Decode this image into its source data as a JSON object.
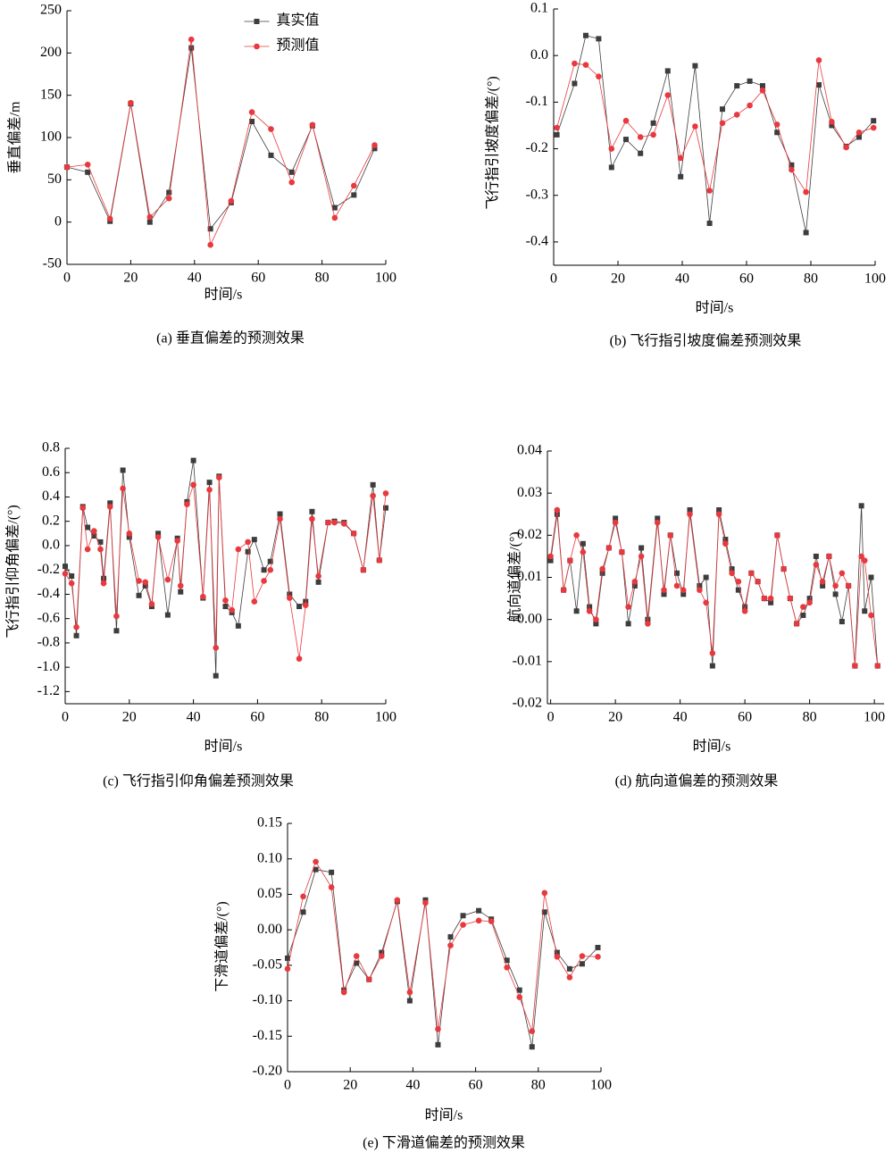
{
  "chart_data": [
    {
      "type": "line",
      "title": "(a) 垂直偏差的预测效果",
      "xlabel": "时间/s",
      "ylabel": "垂直偏差/m",
      "x": [
        0,
        6.5,
        13.5,
        20,
        26,
        32,
        39,
        45,
        51.5,
        58,
        64,
        70.5,
        77,
        84,
        90,
        96.5
      ],
      "series": [
        {
          "name": "真实值",
          "color": "#3d3d3d",
          "marker": "square",
          "values": [
            65,
            59,
            1,
            140,
            0,
            35,
            206,
            -8,
            23,
            119,
            79,
            59,
            114,
            17,
            32,
            87
          ]
        },
        {
          "name": "预测值",
          "color": "#e8393f",
          "marker": "circle",
          "values": [
            65,
            68,
            4,
            141,
            6,
            28,
            216,
            -27,
            25,
            130,
            110,
            47,
            115,
            5,
            43,
            91
          ]
        }
      ],
      "xlim": [
        0,
        100
      ],
      "xticks": [
        0,
        20,
        40,
        60,
        80,
        100
      ],
      "ylim": [
        -50,
        250
      ],
      "yticks": [
        -50,
        0,
        50,
        100,
        150,
        200,
        250
      ],
      "legend": "upper center"
    },
    {
      "type": "line",
      "title": "(b) 飞行指引坡度偏差预测效果",
      "xlabel": "时间/s",
      "ylabel": "飞行指引坡度偏差/(°)",
      "x": [
        1,
        6.5,
        10,
        14,
        18,
        22.5,
        27,
        31,
        35.5,
        39.5,
        44,
        48.5,
        52.5,
        57,
        61,
        65,
        69.5,
        74,
        78.5,
        82.5,
        86.5,
        91,
        95,
        99.5
      ],
      "series": [
        {
          "name": "真实值",
          "color": "#3d3d3d",
          "marker": "square",
          "values": [
            -0.17,
            -0.06,
            0.043,
            0.036,
            -0.24,
            -0.18,
            -0.21,
            -0.145,
            -0.033,
            -0.26,
            -0.022,
            -0.36,
            -0.115,
            -0.065,
            -0.055,
            -0.065,
            -0.165,
            -0.235,
            -0.38,
            -0.063,
            -0.15,
            -0.195,
            -0.175,
            -0.14
          ]
        },
        {
          "name": "预测值",
          "color": "#e8393f",
          "marker": "circle",
          "values": [
            -0.155,
            -0.017,
            -0.02,
            -0.045,
            -0.2,
            -0.14,
            -0.175,
            -0.17,
            -0.085,
            -0.22,
            -0.152,
            -0.29,
            -0.145,
            -0.127,
            -0.107,
            -0.075,
            -0.148,
            -0.245,
            -0.293,
            -0.01,
            -0.142,
            -0.197,
            -0.165,
            -0.155
          ]
        }
      ],
      "xlim": [
        0,
        100
      ],
      "xticks": [
        0,
        20,
        40,
        60,
        80,
        100
      ],
      "ylim": [
        -0.45,
        0.1
      ],
      "yticks": [
        -0.4,
        -0.3,
        -0.2,
        -0.1,
        {
          "value": 0,
          "label": "0.0"
        },
        0.1
      ]
    },
    {
      "type": "line",
      "title": "(c) 飞行指引仰角偏差预测效果",
      "xlabel": "时间/s",
      "ylabel": "飞行指引仰角偏差/(°)",
      "x": [
        0,
        2,
        3.5,
        5.5,
        7,
        9,
        11,
        12,
        14,
        16,
        18,
        20,
        23,
        25,
        27,
        29,
        32,
        35,
        36,
        38,
        40,
        43,
        45,
        47,
        48,
        50,
        52,
        54,
        57,
        59,
        62,
        64,
        67,
        70,
        73,
        75,
        77,
        79,
        82,
        84,
        87,
        90,
        93,
        96,
        98,
        100
      ],
      "series": [
        {
          "name": "真实值",
          "color": "#3d3d3d",
          "marker": "square",
          "values": [
            -0.17,
            -0.25,
            -0.74,
            0.32,
            0.15,
            0.08,
            0.03,
            -0.27,
            0.35,
            -0.7,
            0.62,
            0.07,
            -0.41,
            -0.33,
            -0.5,
            0.1,
            -0.57,
            0.06,
            -0.38,
            0.36,
            0.7,
            -0.43,
            0.52,
            -1.07,
            0.57,
            -0.5,
            -0.55,
            -0.66,
            -0.05,
            0.05,
            -0.2,
            -0.13,
            0.26,
            -0.4,
            -0.5,
            -0.46,
            0.28,
            -0.3,
            0.19,
            0.2,
            0.19,
            0.1,
            -0.2,
            0.5,
            -0.12,
            0.31
          ]
        },
        {
          "name": "预测值",
          "color": "#e8393f",
          "marker": "circle",
          "values": [
            -0.23,
            -0.31,
            -0.67,
            0.31,
            -0.03,
            0.12,
            -0.03,
            -0.31,
            0.32,
            -0.58,
            0.47,
            0.1,
            -0.29,
            -0.3,
            -0.48,
            0.07,
            -0.28,
            0.04,
            -0.33,
            0.34,
            0.5,
            -0.42,
            0.46,
            -0.84,
            0.56,
            -0.45,
            -0.53,
            -0.03,
            0.03,
            -0.46,
            -0.29,
            -0.2,
            0.22,
            -0.43,
            -0.93,
            -0.49,
            0.22,
            -0.25,
            0.19,
            0.19,
            0.18,
            0.1,
            -0.2,
            0.41,
            -0.12,
            0.43
          ]
        }
      ],
      "xlim": [
        0,
        100
      ],
      "xticks": [
        0,
        20,
        40,
        60,
        80,
        100
      ],
      "ylim": [
        -1.3,
        0.8
      ],
      "yticks": [
        -1.2,
        {
          "value": -1,
          "label": "-1.0"
        },
        -0.8,
        -0.6,
        -0.4,
        -0.2,
        {
          "value": 0,
          "label": "0.0"
        },
        0.2,
        0.4,
        0.6,
        0.8
      ]
    },
    {
      "type": "line",
      "title": "(d) 航向道偏差的预测效果",
      "xlabel": "时间/s",
      "ylabel": "航向道偏差/(°)",
      "x": [
        0,
        2,
        4,
        6,
        8,
        10,
        12,
        14,
        16,
        18,
        20,
        22,
        24,
        26,
        28,
        30,
        33,
        35,
        37,
        39,
        41,
        43,
        46,
        48,
        50,
        52,
        54,
        56,
        58,
        60,
        62,
        64,
        66,
        68,
        70,
        72,
        74,
        76,
        78,
        80,
        82,
        84,
        86,
        88,
        90,
        92,
        94,
        96,
        97,
        99,
        101
      ],
      "series": [
        {
          "name": "真实值",
          "color": "#3d3d3d",
          "marker": "square",
          "values": [
            0.014,
            0.025,
            0.007,
            0.014,
            0.002,
            0.018,
            0.003,
            -0.001,
            0.011,
            0.017,
            0.024,
            0.016,
            -0.001,
            0.008,
            0.017,
            0,
            0.024,
            0.006,
            0.02,
            0.011,
            0.006,
            0.026,
            0.008,
            0.01,
            -0.011,
            0.026,
            0.019,
            0.012,
            0.007,
            0.003,
            0.011,
            0.009,
            0.005,
            0.004,
            0.02,
            0.012,
            0.005,
            -0.001,
            0.001,
            0.005,
            0.015,
            0.008,
            0.015,
            0.006,
            -0.0005,
            0.008,
            -0.011,
            0.027,
            0.002,
            0.01,
            -0.011
          ]
        },
        {
          "name": "预测值",
          "color": "#e8393f",
          "marker": "circle",
          "values": [
            0.015,
            0.026,
            0.007,
            0.014,
            0.02,
            0.016,
            0.002,
            0,
            0.012,
            0.017,
            0.023,
            0.016,
            0.003,
            0.009,
            0.015,
            -0.001,
            0.023,
            0.007,
            0.02,
            0.008,
            0.007,
            0.025,
            0.007,
            0.004,
            -0.008,
            0.025,
            0.018,
            0.011,
            0.009,
            0.002,
            0.011,
            0.009,
            0.005,
            0.005,
            0.02,
            0.012,
            0.005,
            -0.001,
            0.003,
            0.004,
            0.013,
            0.009,
            0.015,
            0.008,
            0.011,
            0.008,
            -0.011,
            0.015,
            0.014,
            0.001,
            -0.011
          ]
        }
      ],
      "xlim": [
        -1,
        103
      ],
      "xticks": [
        0,
        20,
        40,
        60,
        80,
        100
      ],
      "ylim": [
        -0.02,
        0.04
      ],
      "yticks": [
        {
          "value": -0.02,
          "label": "-0.02"
        },
        {
          "value": -0.01,
          "label": "-0.01"
        },
        {
          "value": 0,
          "label": "0.00"
        },
        0.01,
        0.02,
        0.03,
        0.04
      ]
    },
    {
      "type": "line",
      "title": "(e) 下滑道偏差的预测效果",
      "xlabel": "时间/s",
      "ylabel": "下滑道偏差/(°)",
      "x": [
        0,
        5,
        9,
        14,
        18,
        22,
        26,
        30,
        35,
        39,
        44,
        48,
        52,
        56,
        61,
        65,
        70,
        74,
        78,
        82,
        86,
        90,
        94,
        99
      ],
      "series": [
        {
          "name": "真实值",
          "color": "#3d3d3d",
          "marker": "square",
          "values": [
            -0.04,
            0.025,
            0.085,
            0.081,
            -0.085,
            -0.047,
            -0.07,
            -0.032,
            0.04,
            -0.1,
            0.042,
            -0.162,
            -0.01,
            0.02,
            0.027,
            0.015,
            -0.043,
            -0.085,
            -0.165,
            0.025,
            -0.032,
            -0.055,
            -0.048,
            -0.025
          ]
        },
        {
          "name": "预测值",
          "color": "#e8393f",
          "marker": "circle",
          "values": [
            -0.055,
            0.047,
            0.096,
            0.06,
            -0.088,
            -0.037,
            -0.07,
            -0.037,
            0.042,
            -0.088,
            0.038,
            -0.14,
            -0.022,
            0.007,
            0.013,
            0.012,
            -0.053,
            -0.095,
            -0.143,
            0.052,
            -0.038,
            -0.067,
            -0.037,
            -0.038
          ]
        }
      ],
      "xlim": [
        0,
        100
      ],
      "xticks": [
        0,
        20,
        40,
        60,
        80,
        100
      ],
      "ylim": [
        -0.2,
        0.15
      ],
      "yticks": [
        {
          "value": -0.2,
          "label": "-0.20"
        },
        -0.15,
        {
          "value": -0.1,
          "label": "-0.10"
        },
        -0.05,
        {
          "value": 0,
          "label": "0.00"
        },
        0.05,
        {
          "value": 0.1,
          "label": "0.10"
        },
        0.15
      ]
    }
  ]
}
